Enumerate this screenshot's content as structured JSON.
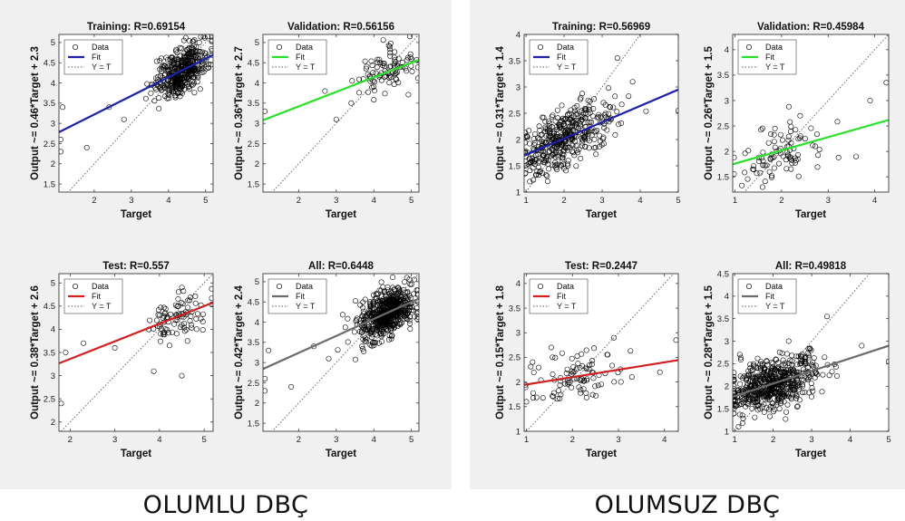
{
  "captions": {
    "left": "OLUMLU DBÇ",
    "right": "OLUMSUZ DBÇ"
  },
  "legend": {
    "data": "Data",
    "fit": "Fit",
    "yt": "Y = T"
  },
  "colors": {
    "panel_bg": "#f0f0f0",
    "training_fit": "#1f1fa8",
    "validation_fit": "#28e028",
    "test_fit": "#d02020",
    "all_fit": "#6b6b6b",
    "data_marker": "#000000"
  },
  "chart_data": [
    {
      "id": "olumlu-training",
      "type": "scatter",
      "group": "OLUMLU DBÇ",
      "title": "Training: R=0.69154",
      "xlabel": "Target",
      "ylabel": "Output ~= 0.46*Target + 2.3",
      "xlim": [
        1.05,
        5.2
      ],
      "ylim": [
        1.3,
        5.2
      ],
      "xticks": [
        2,
        3,
        4,
        5
      ],
      "yticks": [
        1.5,
        2,
        2.5,
        3,
        3.5,
        4,
        4.5,
        5
      ],
      "fit": {
        "slope": 0.46,
        "intercept": 2.3
      },
      "n_points": 420,
      "cluster": {
        "x_center": 4.35,
        "x_spread": 0.35,
        "outliers": [
          [
            1.1,
            2.3
          ],
          [
            1.1,
            2.6
          ],
          [
            1.15,
            3.4
          ],
          [
            1.8,
            2.4
          ],
          [
            2.4,
            3.4
          ],
          [
            2.8,
            3.1
          ]
        ]
      },
      "fit_color_key": "training_fit"
    },
    {
      "id": "olumlu-validation",
      "type": "scatter",
      "group": "OLUMLU DBÇ",
      "title": "Validation: R=0.56156",
      "xlabel": "Target",
      "ylabel": "Output ~= 0.36*Target + 2.7",
      "xlim": [
        1.05,
        5.2
      ],
      "ylim": [
        1.3,
        5.2
      ],
      "xticks": [
        2,
        3,
        4,
        5
      ],
      "yticks": [
        1.5,
        2,
        2.5,
        3,
        3.5,
        4,
        4.5,
        5
      ],
      "fit": {
        "slope": 0.36,
        "intercept": 2.7
      },
      "n_points": 90,
      "cluster": {
        "x_center": 4.3,
        "x_spread": 0.4,
        "outliers": [
          [
            1.1,
            3.3
          ],
          [
            2.7,
            3.8
          ],
          [
            3.0,
            3.1
          ],
          [
            3.4,
            3.5
          ]
        ]
      },
      "fit_color_key": "validation_fit"
    },
    {
      "id": "olumlu-test",
      "type": "scatter",
      "group": "OLUMLU DBÇ",
      "title": "Test: R=0.557",
      "xlabel": "Target",
      "ylabel": "Output ~= 0.38*Target + 2.6",
      "xlim": [
        1.75,
        5.2
      ],
      "ylim": [
        1.8,
        5.2
      ],
      "xticks": [
        2,
        3,
        4,
        5
      ],
      "yticks": [
        2,
        2.5,
        3,
        3.5,
        4,
        4.5,
        5
      ],
      "fit": {
        "slope": 0.38,
        "intercept": 2.6
      },
      "n_points": 90,
      "cluster": {
        "x_center": 4.4,
        "x_spread": 0.35,
        "outliers": [
          [
            1.8,
            2.4
          ],
          [
            1.9,
            3.5
          ],
          [
            2.3,
            3.7
          ],
          [
            3.0,
            3.6
          ],
          [
            4.5,
            3.0
          ]
        ]
      },
      "fit_color_key": "test_fit"
    },
    {
      "id": "olumlu-all",
      "type": "scatter",
      "group": "OLUMLU DBÇ",
      "title": "All: R=0.6448",
      "xlabel": "Target",
      "ylabel": "Output ~= 0.42*Target + 2.4",
      "xlim": [
        1.05,
        5.2
      ],
      "ylim": [
        1.3,
        5.2
      ],
      "xticks": [
        2,
        3,
        4,
        5
      ],
      "yticks": [
        1.5,
        2,
        2.5,
        3,
        3.5,
        4,
        4.5,
        5
      ],
      "fit": {
        "slope": 0.42,
        "intercept": 2.4
      },
      "n_points": 600,
      "cluster": {
        "x_center": 4.35,
        "x_spread": 0.38,
        "outliers": [
          [
            1.1,
            2.3
          ],
          [
            1.1,
            2.6
          ],
          [
            1.2,
            3.3
          ],
          [
            1.8,
            2.4
          ],
          [
            2.4,
            3.4
          ],
          [
            2.8,
            3.1
          ]
        ]
      },
      "fit_color_key": "all_fit"
    },
    {
      "id": "olumsuz-training",
      "type": "scatter",
      "group": "OLUMSUZ DBÇ",
      "title": "Training: R=0.56969",
      "xlabel": "Target",
      "ylabel": "Output ~= 0.31*Target + 1.4",
      "xlim": [
        0.95,
        5.0
      ],
      "ylim": [
        1.0,
        4.0
      ],
      "xticks": [
        1,
        2,
        3,
        4,
        5
      ],
      "yticks": [
        1,
        1.5,
        2,
        2.5,
        3,
        3.5,
        4
      ],
      "fit": {
        "slope": 0.31,
        "intercept": 1.4
      },
      "n_points": 420,
      "cluster": {
        "x_center": 2.0,
        "x_spread": 0.55,
        "outliers": [
          [
            3.4,
            3.55
          ],
          [
            3.8,
            3.1
          ],
          [
            5.0,
            2.55
          ],
          [
            1.1,
            1.2
          ]
        ]
      },
      "fit_color_key": "training_fit"
    },
    {
      "id": "olumsuz-validation",
      "type": "scatter",
      "group": "OLUMSUZ DBÇ",
      "title": "Validation: R=0.45984",
      "xlabel": "Target",
      "ylabel": "Output ~= 0.26*Target + 1.5",
      "xlim": [
        0.95,
        4.3
      ],
      "ylim": [
        1.2,
        4.3
      ],
      "xticks": [
        1,
        2,
        3,
        4
      ],
      "yticks": [
        1.5,
        2,
        2.5,
        3,
        3.5,
        4
      ],
      "fit": {
        "slope": 0.26,
        "intercept": 1.5
      },
      "n_points": 90,
      "cluster": {
        "x_center": 2.0,
        "x_spread": 0.55,
        "outliers": [
          [
            4.25,
            3.35
          ],
          [
            3.9,
            3.0
          ],
          [
            2.4,
            2.7
          ],
          [
            3.6,
            1.9
          ]
        ]
      },
      "fit_color_key": "validation_fit"
    },
    {
      "id": "olumsuz-test",
      "type": "scatter",
      "group": "OLUMSUZ DBÇ",
      "title": "Test: R=0.2447",
      "xlabel": "Target",
      "ylabel": "Output ~= 0.15*Target + 1.8",
      "xlim": [
        0.95,
        4.3
      ],
      "ylim": [
        1.0,
        4.2
      ],
      "xticks": [
        1,
        2,
        3,
        4
      ],
      "yticks": [
        1,
        1.5,
        2,
        2.5,
        3,
        3.5,
        4
      ],
      "fit": {
        "slope": 0.15,
        "intercept": 1.8
      },
      "n_points": 90,
      "cluster": {
        "x_center": 2.0,
        "x_spread": 0.55,
        "outliers": [
          [
            4.25,
            2.85
          ],
          [
            3.9,
            2.2
          ],
          [
            2.9,
            2.9
          ],
          [
            1.0,
            1.6
          ]
        ]
      },
      "fit_color_key": "test_fit"
    },
    {
      "id": "olumsuz-all",
      "type": "scatter",
      "group": "OLUMSUZ DBÇ",
      "title": "All: R=0.49818",
      "xlabel": "Target",
      "ylabel": "Output ~= 0.28*Target + 1.5",
      "xlim": [
        0.95,
        5.0
      ],
      "ylim": [
        1.0,
        4.5
      ],
      "xticks": [
        1,
        2,
        3,
        4,
        5
      ],
      "yticks": [
        1,
        1.5,
        2,
        2.5,
        3,
        3.5,
        4,
        4.5
      ],
      "fit": {
        "slope": 0.28,
        "intercept": 1.5
      },
      "n_points": 600,
      "cluster": {
        "x_center": 2.0,
        "x_spread": 0.55,
        "outliers": [
          [
            5.0,
            2.55
          ],
          [
            3.4,
            3.55
          ],
          [
            4.3,
            2.9
          ],
          [
            1.1,
            1.1
          ]
        ]
      },
      "fit_color_key": "all_fit"
    }
  ]
}
